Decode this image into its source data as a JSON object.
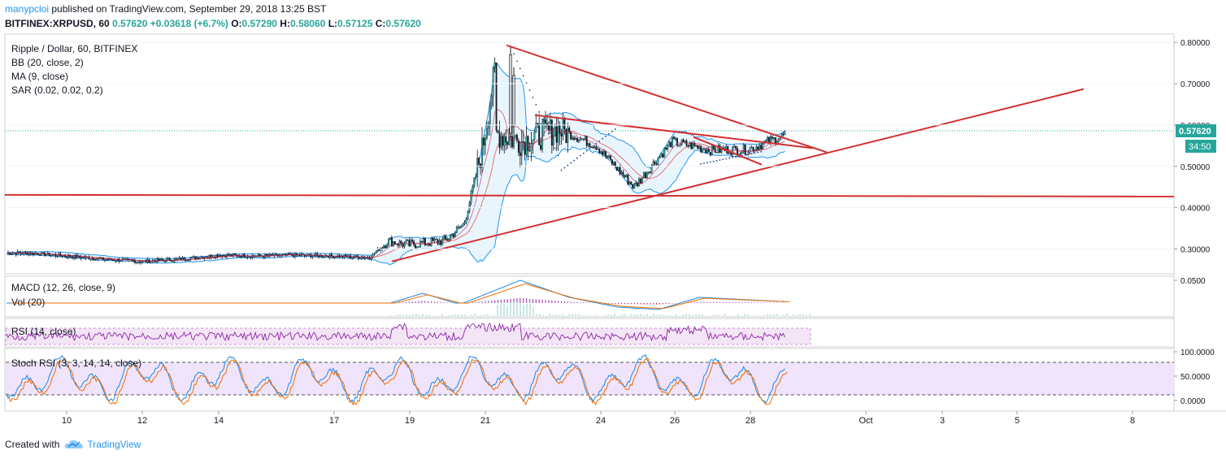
{
  "publisher": {
    "user": "manypcloi",
    "rest": "published on TradingView.com, September 29, 2018 13:25 BST"
  },
  "ticker": {
    "symbol": "BITFINEX:XRPUSD, 60",
    "last": "0.57620",
    "change": "+0.03618 (+6.7%)",
    "o_label": "O:",
    "o": "0.57290",
    "h_label": "H:",
    "h": "0.58060",
    "l_label": "L:",
    "l": "0.57125",
    "c_label": "C:",
    "c": "0.57620"
  },
  "legend": {
    "title": "Ripple / Dollar, 60, BITFINEX",
    "bb": "BB (20, close, 2)",
    "ma": "MA (9, close)",
    "sar": "SAR (0.02, 0.02, 0.2)",
    "macd": "MACD (12, 26, close, 9)",
    "vol": "Vol (20)",
    "rsi": "RSI (14, close)",
    "stoch": "Stoch RSI (3, 3, 14, 14, close)"
  },
  "price_axis": {
    "ticks": [
      "0.80000",
      "0.70000",
      "0.60000",
      "0.50000",
      "0.40000",
      "0.30000"
    ],
    "tick_values": [
      0.8,
      0.7,
      0.6,
      0.5,
      0.4,
      0.3
    ],
    "last_price_label": "0.57620",
    "countdown_label": "34:50"
  },
  "macd_axis": {
    "ticks": [
      "0.0500"
    ]
  },
  "stoch_axis": {
    "ticks": [
      "100.0000",
      "50.0000",
      "0.0000"
    ]
  },
  "time_axis": {
    "labels": [
      "10",
      "12",
      "14",
      "17",
      "19",
      "21",
      "24",
      "26",
      "28",
      "Oct",
      "3",
      "5",
      "8"
    ]
  },
  "colors": {
    "up": "#26a69a",
    "down": "#131722",
    "trendline": "#d32f2f",
    "bb": "#2196f3",
    "bb_fill": "#e3f2fd",
    "ma": "#c2185b",
    "sar": "#1e3a8a",
    "rsi_band": "#e1bee7",
    "rsi_line": "#8e24aa",
    "stoch_band": "#d9c3f5",
    "stoch_k": "#1e88e5",
    "stoch_d": "#ef6c00",
    "last_price_bg": "#26a69a",
    "accent": "#2196f3"
  },
  "chart_data": {
    "type": "candlestick",
    "symbol": "BITFINEX:XRPUSD",
    "interval": "60",
    "ylim": [
      0.24,
      0.82
    ],
    "last_price": 0.5762,
    "price_path": [
      {
        "date": "Sep 9",
        "close": 0.29
      },
      {
        "date": "Sep 10",
        "close": 0.283
      },
      {
        "date": "Sep 11",
        "close": 0.275
      },
      {
        "date": "Sep 12",
        "close": 0.27
      },
      {
        "date": "Sep 13",
        "close": 0.275
      },
      {
        "date": "Sep 14",
        "close": 0.285
      },
      {
        "date": "Sep 15",
        "close": 0.283
      },
      {
        "date": "Sep 16",
        "close": 0.285
      },
      {
        "date": "Sep 17",
        "close": 0.283
      },
      {
        "date": "Sep 18",
        "close": 0.279
      },
      {
        "date": "Sep 18",
        "close": 0.32
      },
      {
        "date": "Sep 19",
        "close": 0.31
      },
      {
        "date": "Sep 20",
        "close": 0.32
      },
      {
        "date": "Sep 20",
        "close": 0.36
      },
      {
        "date": "Sep 21",
        "close": 0.55
      },
      {
        "date": "Sep 21",
        "close": 0.74
      },
      {
        "date": "Sep 21",
        "close": 0.58
      },
      {
        "date": "Sep 22",
        "close": 0.56
      },
      {
        "date": "Sep 23",
        "close": 0.59
      },
      {
        "date": "Sep 24",
        "close": 0.55
      },
      {
        "date": "Sep 25",
        "close": 0.45
      },
      {
        "date": "Sep 26",
        "close": 0.56
      },
      {
        "date": "Sep 27",
        "close": 0.54
      },
      {
        "date": "Sep 28",
        "close": 0.54
      },
      {
        "date": "Sep 29",
        "close": 0.576
      }
    ],
    "trendlines": [
      {
        "name": "horizontal support",
        "from": {
          "date": "Sep 9",
          "price": 0.431
        },
        "to": {
          "date": "Oct 9",
          "price": 0.427
        }
      },
      {
        "name": "rising support",
        "from": {
          "date": "Sep 18",
          "price": 0.27
        },
        "to": {
          "date": "Oct 6",
          "price": 0.687
        }
      },
      {
        "name": "descending resistance",
        "from": {
          "date": "Sep 21",
          "price": 0.793
        },
        "to": {
          "date": "Sep 29",
          "price": 0.534
        }
      },
      {
        "name": "upper triangle edge",
        "from": {
          "date": "Sep 22",
          "price": 0.624
        },
        "to": {
          "date": "Sep 29",
          "price": 0.544
        }
      },
      {
        "name": "short rising edge",
        "from": {
          "date": "Sep 26",
          "price": 0.571
        },
        "to": {
          "date": "Sep 27",
          "price": 0.504
        }
      }
    ]
  }
}
